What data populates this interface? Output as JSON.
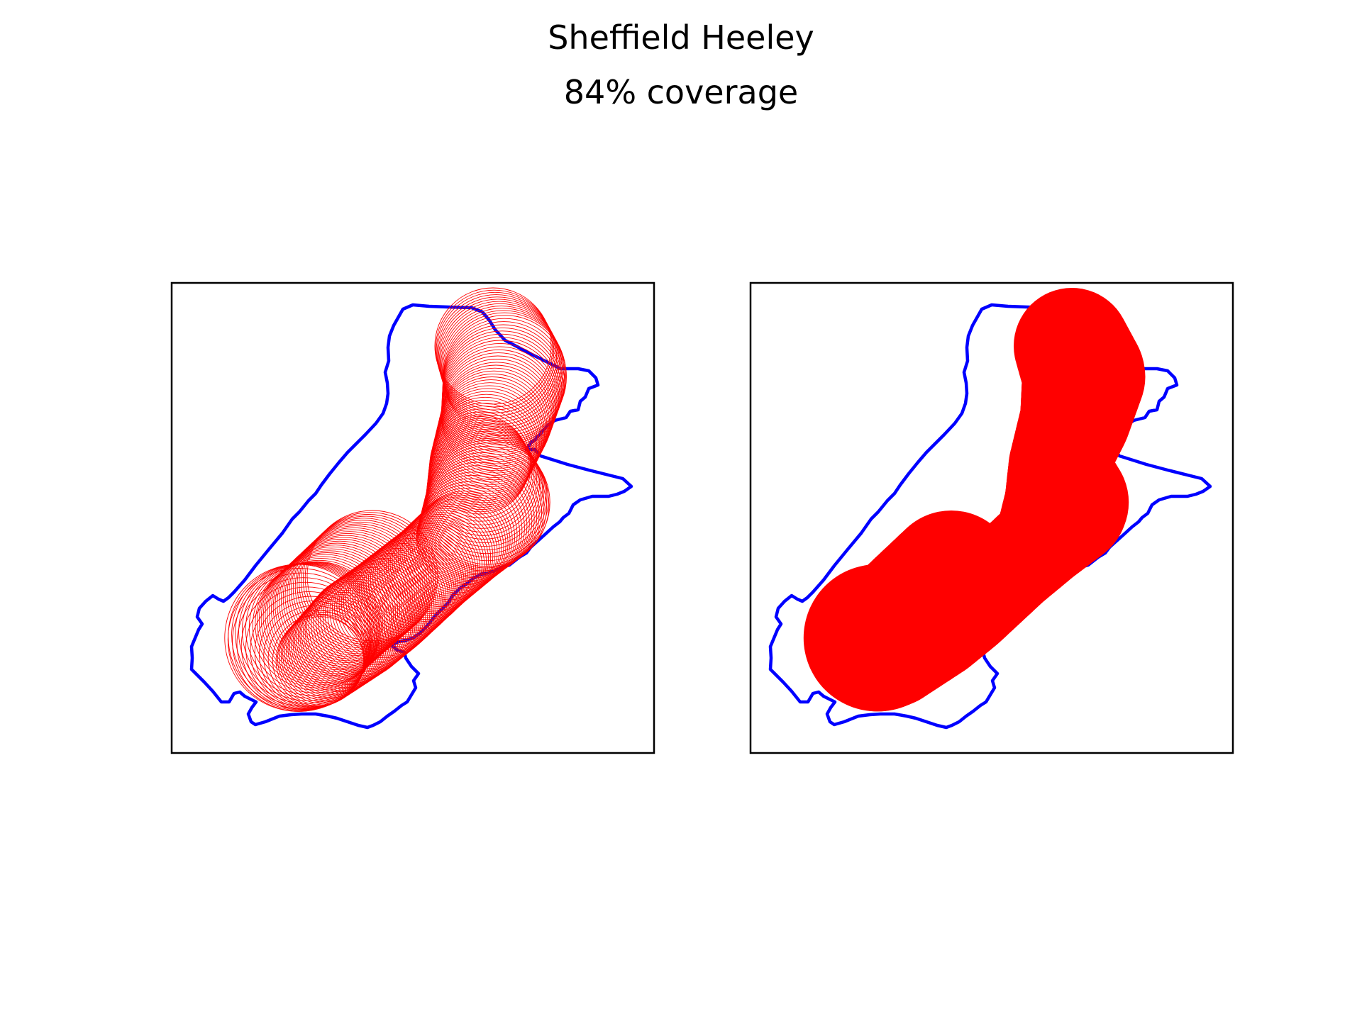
{
  "figure": {
    "title": "Sheffield Heeley",
    "subtitle": "84% coverage",
    "colors": {
      "boundary": "#0000ff",
      "coverage": "#ff0000",
      "frame": "#000000",
      "background": "#ffffff"
    }
  },
  "panels": [
    {
      "name": "coverage-circles-panel",
      "style": "outline-circles"
    },
    {
      "name": "coverage-filled-panel",
      "style": "filled-circles"
    }
  ]
}
